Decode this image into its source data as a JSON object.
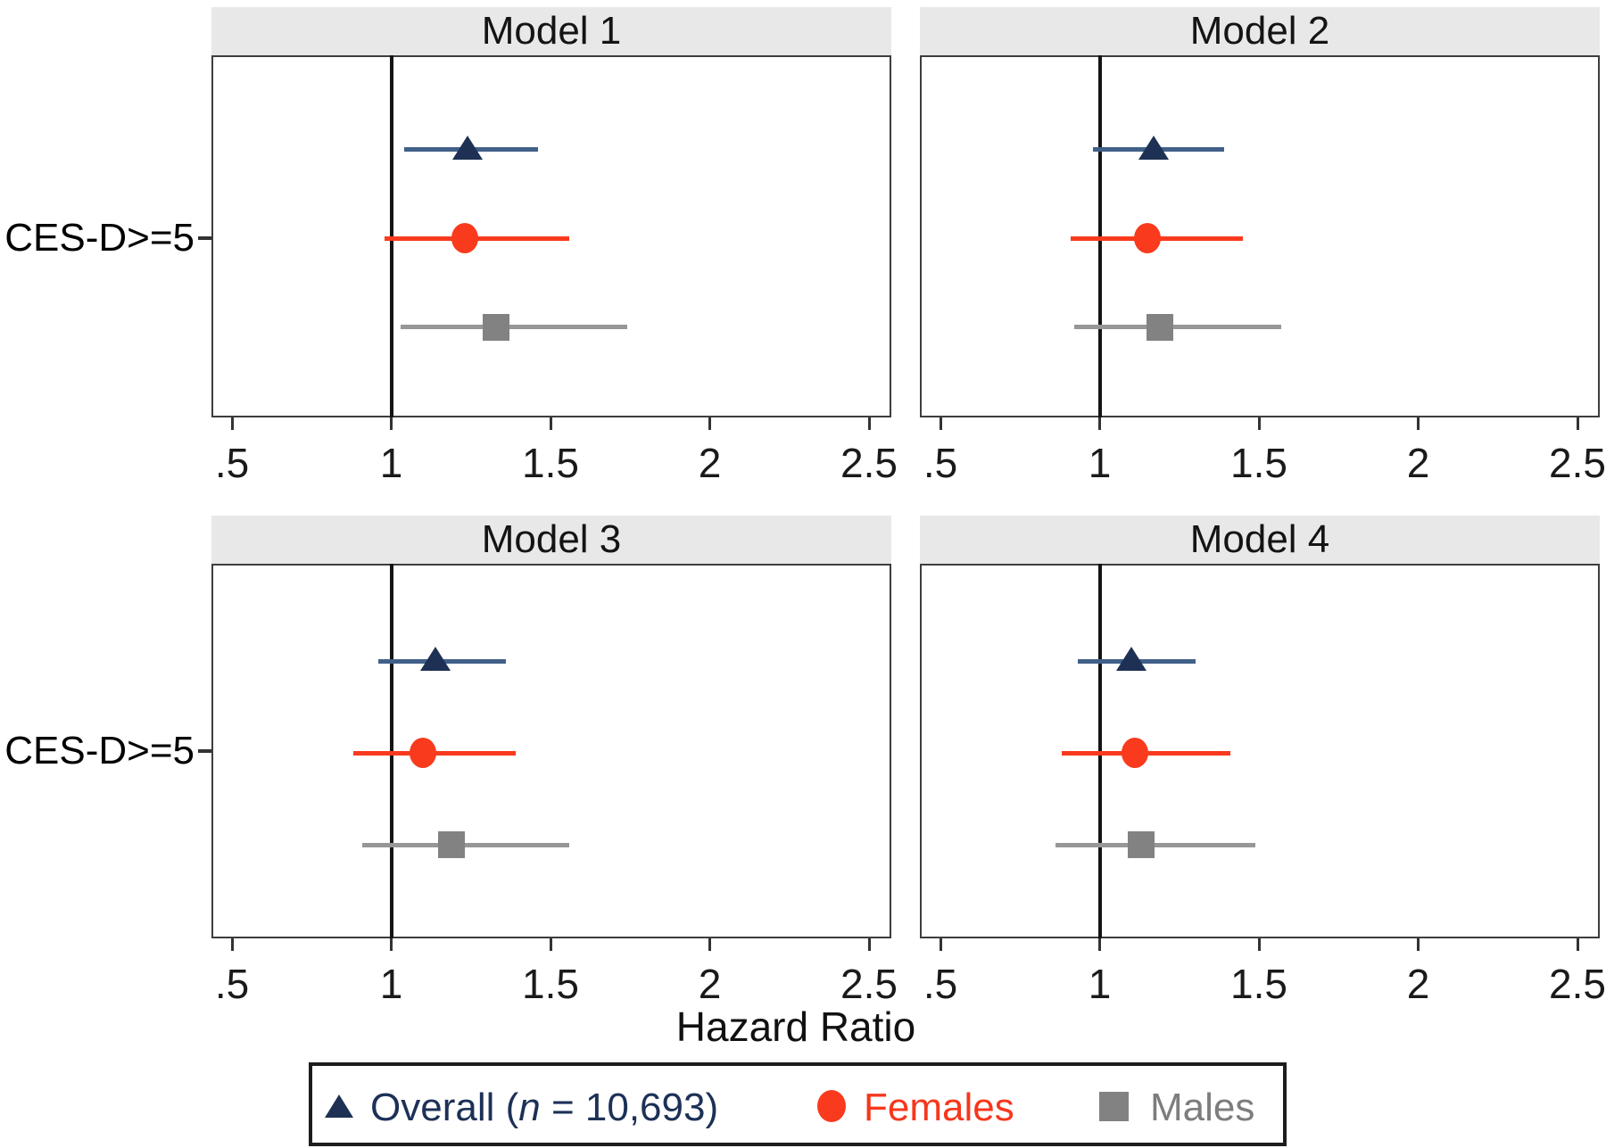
{
  "figure": {
    "xlabel": "Hazard Ratio",
    "row_label": "CES-D>=5"
  },
  "chart_data": {
    "type": "forest",
    "layout_hint": "2x2 panel grid, shared x axis scale, vertical reference line at 1, grid off",
    "xlabel": "Hazard Ratio",
    "row_category": "CES-D>=5",
    "x_ticks": {
      "values": [
        0.5,
        1,
        1.5,
        2,
        2.5
      ],
      "labels": [
        ".5",
        "1",
        "1.5",
        "2",
        "2.5"
      ]
    },
    "xlim": [
      0.44,
      2.57
    ],
    "reference_line": 1,
    "series_names": [
      "Overall",
      "Females",
      "Males"
    ],
    "panels": [
      {
        "title": "Model 1",
        "rows": [
          {
            "series": "Overall",
            "hr": 1.24,
            "ci_low": 1.04,
            "ci_high": 1.46
          },
          {
            "series": "Females",
            "hr": 1.23,
            "ci_low": 0.98,
            "ci_high": 1.56
          },
          {
            "series": "Males",
            "hr": 1.33,
            "ci_low": 1.03,
            "ci_high": 1.74
          }
        ]
      },
      {
        "title": "Model 2",
        "rows": [
          {
            "series": "Overall",
            "hr": 1.17,
            "ci_low": 0.98,
            "ci_high": 1.39
          },
          {
            "series": "Females",
            "hr": 1.15,
            "ci_low": 0.91,
            "ci_high": 1.45
          },
          {
            "series": "Males",
            "hr": 1.19,
            "ci_low": 0.92,
            "ci_high": 1.57
          }
        ]
      },
      {
        "title": "Model 3",
        "rows": [
          {
            "series": "Overall",
            "hr": 1.14,
            "ci_low": 0.96,
            "ci_high": 1.36
          },
          {
            "series": "Females",
            "hr": 1.1,
            "ci_low": 0.88,
            "ci_high": 1.39
          },
          {
            "series": "Males",
            "hr": 1.19,
            "ci_low": 0.91,
            "ci_high": 1.56
          }
        ]
      },
      {
        "title": "Model 4",
        "rows": [
          {
            "series": "Overall",
            "hr": 1.1,
            "ci_low": 0.93,
            "ci_high": 1.3
          },
          {
            "series": "Females",
            "hr": 1.11,
            "ci_low": 0.88,
            "ci_high": 1.41
          },
          {
            "series": "Males",
            "hr": 1.13,
            "ci_low": 0.86,
            "ci_high": 1.49
          }
        ]
      }
    ]
  },
  "legend": {
    "items": [
      {
        "marker": "triangle",
        "marker_color": "#1e3154",
        "text_color": "#1d3157",
        "parts": [
          {
            "text": "Overall (",
            "italic": false
          },
          {
            "text": "n",
            "italic": true
          },
          {
            "text": " = 10,693)",
            "italic": false
          }
        ]
      },
      {
        "marker": "circle",
        "marker_color": "#fa3a1d",
        "text_color": "#f6371c",
        "parts": [
          {
            "text": "Females",
            "italic": false
          }
        ]
      },
      {
        "marker": "square",
        "marker_color": "#828282",
        "text_color": "#7d7d7d",
        "parts": [
          {
            "text": "Males",
            "italic": false
          }
        ]
      }
    ]
  },
  "colors": {
    "band": "#e8e8e8",
    "header_text": "#141414",
    "plot_border": "#3d3d3d",
    "reference_line": "#141414",
    "axis_text": "#1a1a1a",
    "tick": "#333333",
    "navy_marker": "#1e3154",
    "navy_line": "#416089",
    "red": "#fa3a1d",
    "gray_marker": "#828282",
    "gray_line": "#979797"
  }
}
